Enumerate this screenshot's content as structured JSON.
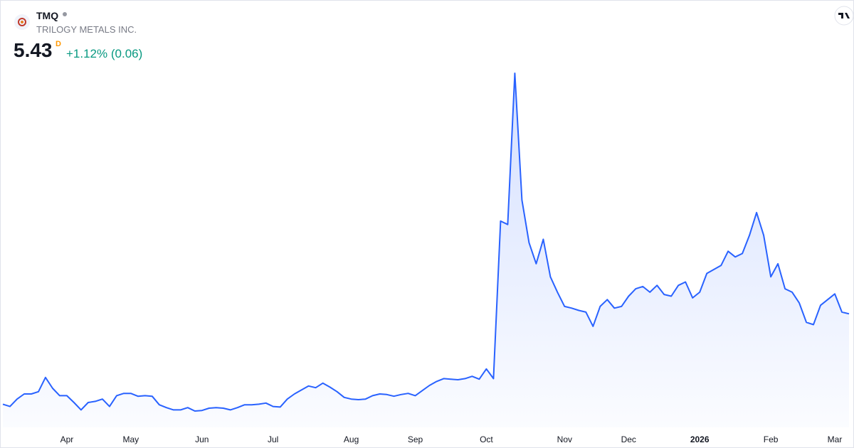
{
  "chart_data": {
    "type": "area",
    "symbol": "TMQ",
    "title": "TRILOGY METALS INC.",
    "price": "5.43",
    "interval": "D",
    "change": "+1.12% (0.06)",
    "color": "#2962ff",
    "categories": [
      null,
      null,
      null,
      null,
      null,
      null,
      null,
      null,
      null,
      "Apr",
      null,
      null,
      null,
      null,
      null,
      null,
      null,
      null,
      "May",
      null,
      null,
      null,
      null,
      null,
      null,
      null,
      null,
      null,
      "Jun",
      null,
      null,
      null,
      null,
      null,
      null,
      null,
      null,
      null,
      "Jul",
      null,
      null,
      null,
      null,
      null,
      null,
      null,
      null,
      null,
      null,
      "Aug",
      null,
      null,
      null,
      null,
      null,
      null,
      null,
      null,
      "Sep",
      null,
      null,
      null,
      null,
      null,
      null,
      null,
      null,
      null,
      "Oct",
      null,
      null,
      null,
      null,
      null,
      null,
      null,
      null,
      null,
      null,
      "Nov",
      null,
      null,
      null,
      null,
      null,
      null,
      null,
      null,
      "Dec",
      null,
      null,
      null,
      null,
      null,
      null,
      null,
      null,
      null,
      "2026",
      null,
      null,
      null,
      null,
      null,
      null,
      null,
      null,
      null,
      "Feb",
      null,
      null,
      null,
      null,
      null,
      null,
      null,
      null,
      "Mar",
      null,
      null
    ],
    "values": [
      3.84,
      3.8,
      3.93,
      4.02,
      4.02,
      4.06,
      4.31,
      4.12,
      3.99,
      3.99,
      3.87,
      3.74,
      3.87,
      3.89,
      3.93,
      3.8,
      3.99,
      4.03,
      4.03,
      3.98,
      3.99,
      3.98,
      3.83,
      3.78,
      3.74,
      3.74,
      3.78,
      3.72,
      3.73,
      3.77,
      3.78,
      3.77,
      3.74,
      3.78,
      3.83,
      3.83,
      3.84,
      3.86,
      3.8,
      3.79,
      3.93,
      4.02,
      4.09,
      4.16,
      4.13,
      4.21,
      4.14,
      4.06,
      3.96,
      3.93,
      3.92,
      3.93,
      3.99,
      4.02,
      4.01,
      3.98,
      4.01,
      4.03,
      3.99,
      4.08,
      4.17,
      4.24,
      4.29,
      4.28,
      4.27,
      4.29,
      4.33,
      4.28,
      4.46,
      4.29,
      7.06,
      7.0,
      9.66,
      7.43,
      6.68,
      6.31,
      6.74,
      6.08,
      5.81,
      5.56,
      5.53,
      5.49,
      5.46,
      5.21,
      5.56,
      5.68,
      5.53,
      5.56,
      5.74,
      5.87,
      5.91,
      5.81,
      5.93,
      5.77,
      5.74,
      5.93,
      5.99,
      5.71,
      5.81,
      6.14,
      6.21,
      6.28,
      6.53,
      6.43,
      6.49,
      6.81,
      7.21,
      6.81,
      6.08,
      6.31,
      5.87,
      5.81,
      5.62,
      5.28,
      5.24,
      5.58,
      5.68,
      5.78,
      5.46,
      5.43
    ]
  }
}
